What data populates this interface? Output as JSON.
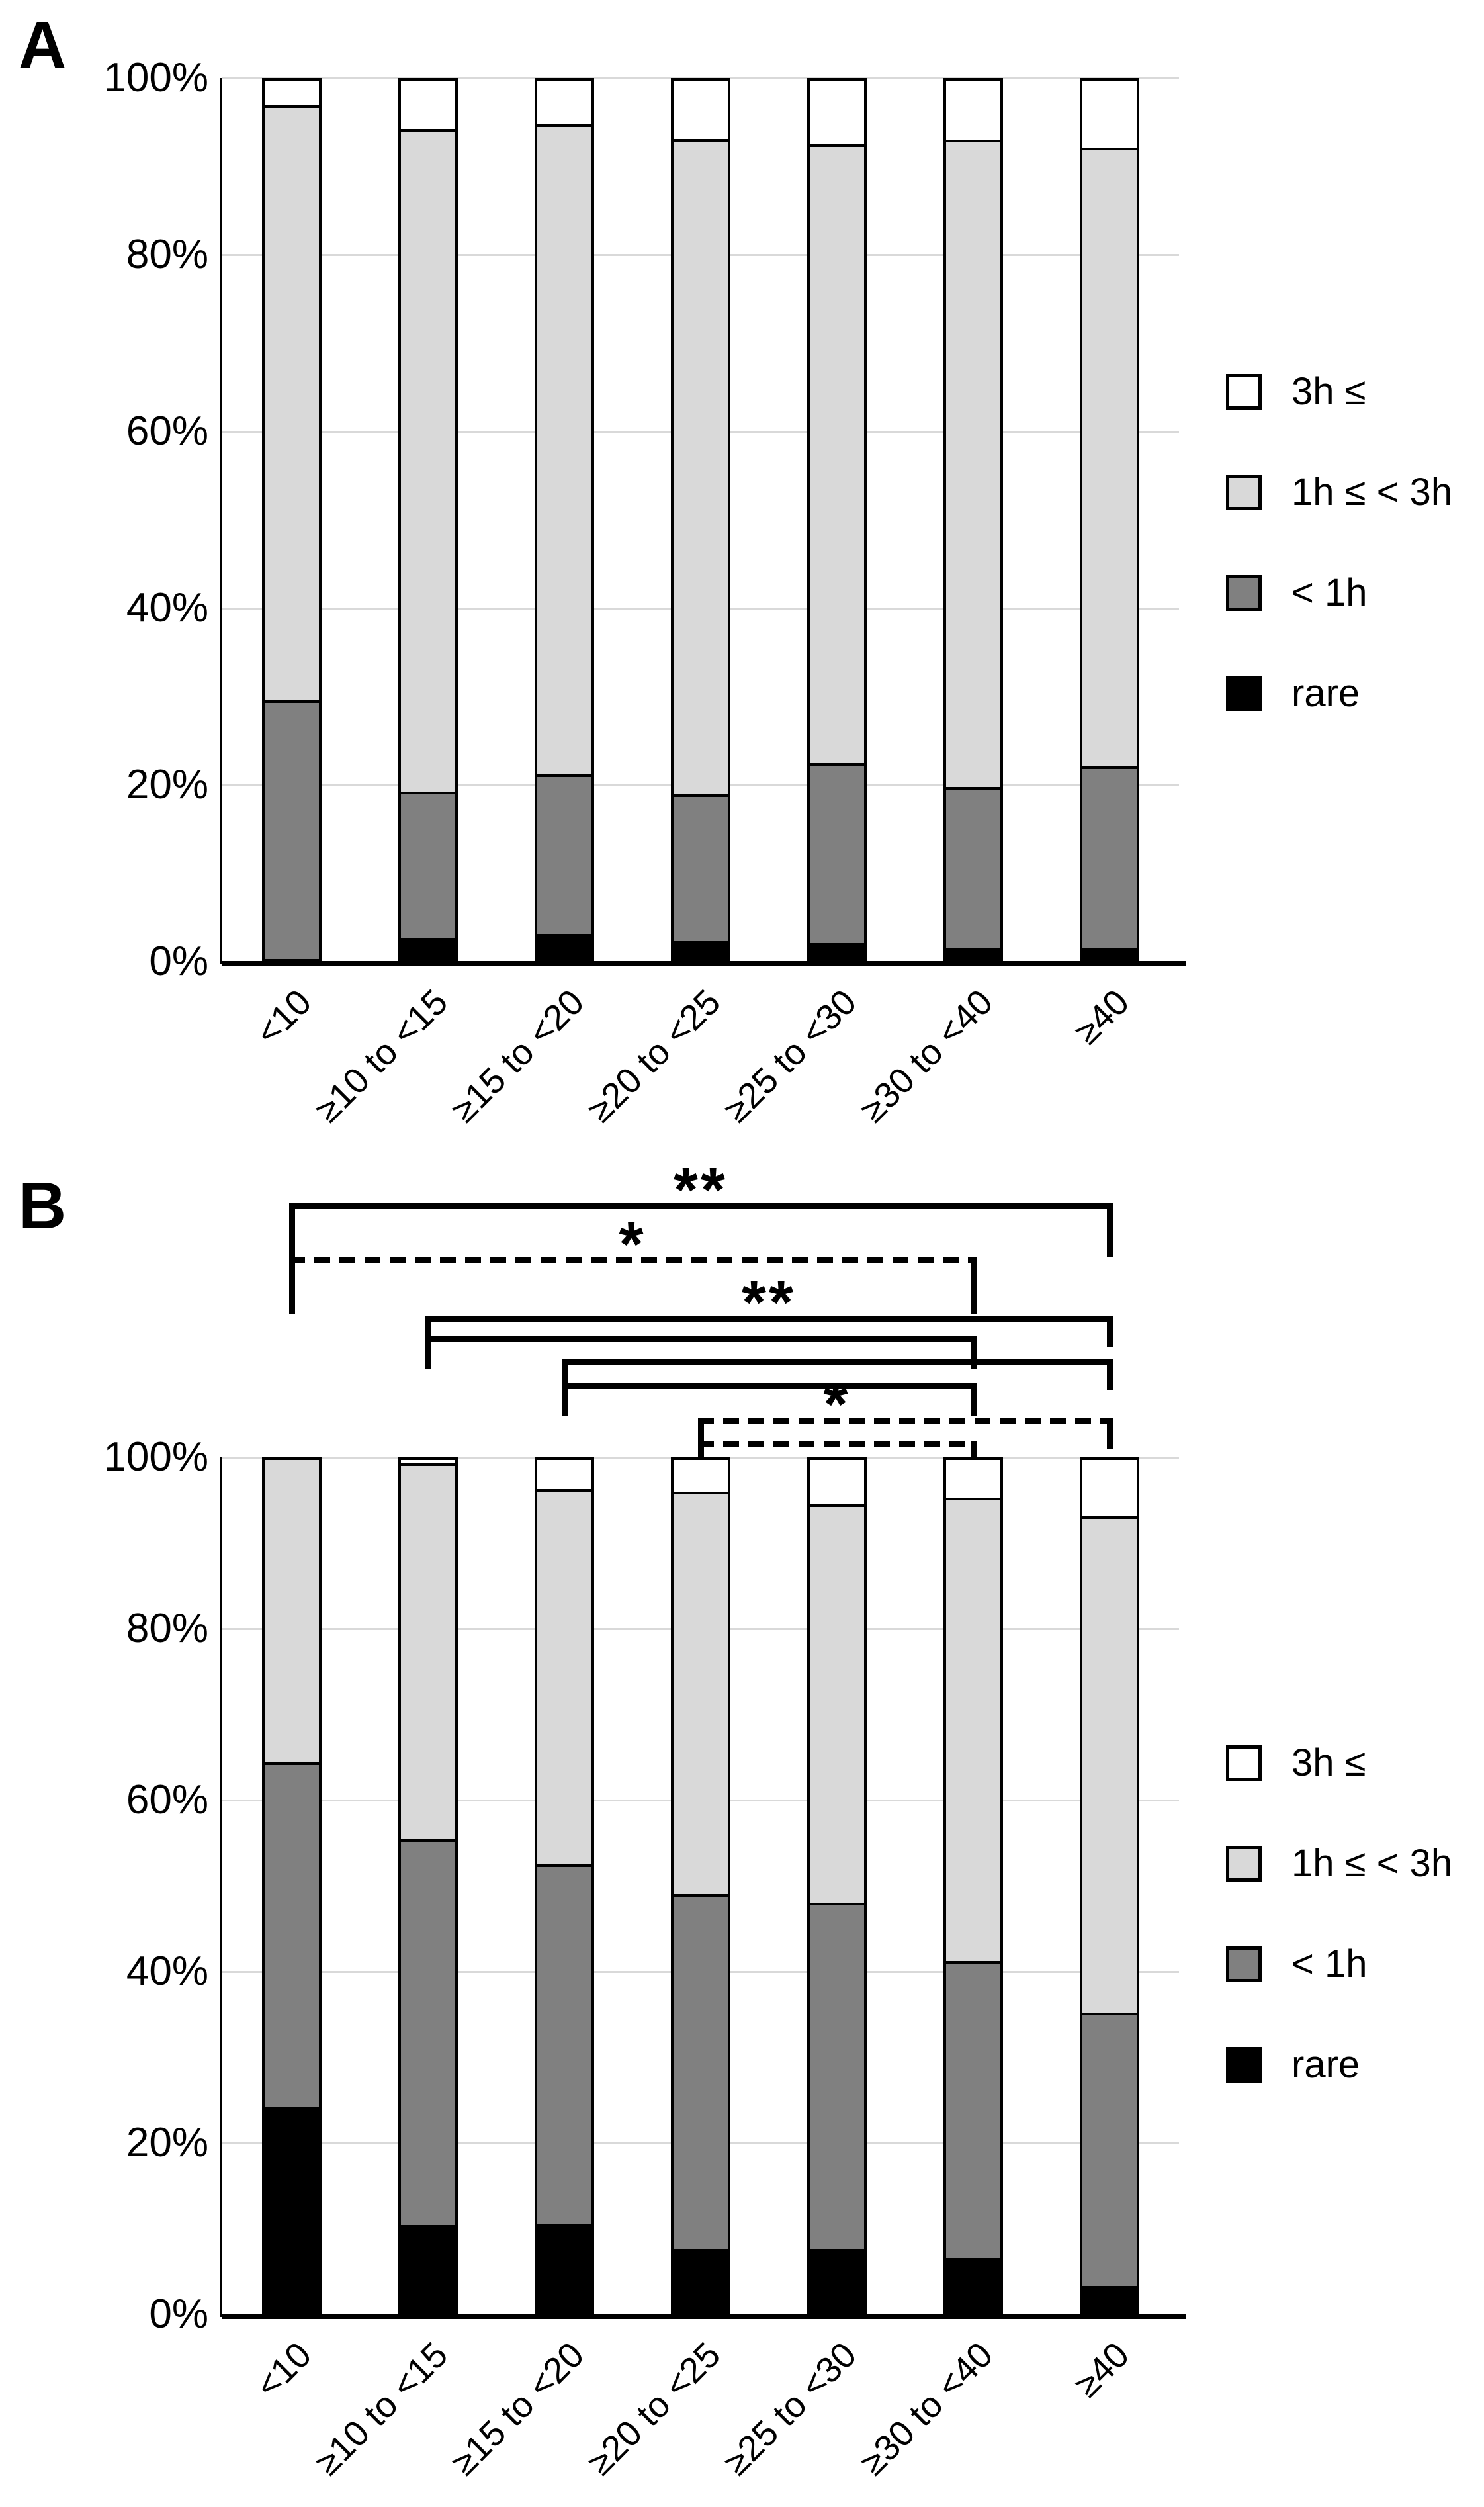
{
  "figure": {
    "background": "#ffffff",
    "panels": [
      {
        "label": "A"
      },
      {
        "label": "B"
      }
    ]
  },
  "legend": {
    "items": [
      {
        "label": "3h ≤",
        "color": "#ffffff"
      },
      {
        "label": "1h ≤ < 3h",
        "color": "#d9d9d9"
      },
      {
        "label": "< 1h",
        "color": "#808080"
      },
      {
        "label": "rare",
        "color": "#000000"
      }
    ]
  },
  "colors": {
    "rare": "#000000",
    "lt1h": "#808080",
    "h1to3": "#d9d9d9",
    "ge3h": "#ffffff",
    "gridline": "#d9d9d9",
    "axis": "#000000"
  },
  "chart_data": [
    {
      "type": "bar",
      "stacked": true,
      "panel_label": "A",
      "title": "",
      "xlabel": "",
      "ylabel": "",
      "ylim": [
        0,
        100
      ],
      "grid": true,
      "y_tick_labels": [
        "100%",
        "80%",
        "60%",
        "40%",
        "20%",
        "0%"
      ],
      "categories": [
        "<10",
        "≥10 to <15",
        "≥15 to <20",
        "≥20 to <25",
        "≥25 to <30",
        "≥30 to <40",
        "≥40"
      ],
      "series": [
        {
          "name": "rare",
          "color": "#000000",
          "values": [
            0,
            2.3,
            2.9,
            2.0,
            1.8,
            1.2,
            1.2
          ]
        },
        {
          "name": "< 1h",
          "color": "#808080",
          "values": [
            29.5,
            16.8,
            18.1,
            16.8,
            20.5,
            18.4,
            20.7
          ]
        },
        {
          "name": "1h ≤ < 3h",
          "color": "#d9d9d9",
          "values": [
            67.7,
            75.4,
            74.0,
            74.6,
            70.5,
            73.7,
            70.5
          ]
        },
        {
          "name": "3h ≤",
          "color": "#ffffff",
          "values": [
            2.8,
            5.5,
            5.0,
            6.6,
            7.2,
            6.7,
            7.6
          ]
        }
      ],
      "significance_brackets": []
    },
    {
      "type": "bar",
      "stacked": true,
      "panel_label": "B",
      "title": "",
      "xlabel": "",
      "ylabel": "",
      "ylim": [
        0,
        100
      ],
      "grid": true,
      "y_tick_labels": [
        "100%",
        "80%",
        "60%",
        "40%",
        "20%",
        "0%"
      ],
      "categories": [
        "<10",
        "≥10 to <15",
        "≥15 to <20",
        "≥20 to <25",
        "≥25 to <30",
        "≥30 to <40",
        "≥40"
      ],
      "series": [
        {
          "name": "rare",
          "color": "#000000",
          "values": [
            24.0,
            10.2,
            10.3,
            7.4,
            7.4,
            6.3,
            3.0
          ]
        },
        {
          "name": "< 1h",
          "color": "#808080",
          "values": [
            40.5,
            45.3,
            42.2,
            41.6,
            40.6,
            34.9,
            32.1
          ]
        },
        {
          "name": "1h ≤ < 3h",
          "color": "#d9d9d9",
          "values": [
            35.5,
            44.1,
            44.1,
            47.3,
            46.8,
            54.4,
            58.3
          ]
        },
        {
          "name": "3h ≤",
          "color": "#ffffff",
          "values": [
            0,
            0.4,
            3.4,
            3.7,
            5.2,
            4.4,
            6.6
          ]
        }
      ],
      "significance_brackets": [
        {
          "from": "<10",
          "to": "≥40",
          "style": "solid",
          "label": "**"
        },
        {
          "from": "<10",
          "to": "≥30 to <40",
          "style": "dashed",
          "label": "*"
        },
        {
          "from": "≥10 to <15",
          "to": "≥40",
          "style": "solid",
          "label": "**"
        },
        {
          "from": "≥10 to <15",
          "to": "≥30 to <40",
          "style": "solid",
          "label": ""
        },
        {
          "from": "≥15 to <20",
          "to": "≥40",
          "style": "solid",
          "label": ""
        },
        {
          "from": "≥15 to <20",
          "to": "≥30 to <40",
          "style": "solid",
          "label": ""
        },
        {
          "from": "≥20 to <25",
          "to": "≥40",
          "style": "dashed",
          "label": "*"
        },
        {
          "from": "≥20 to <25",
          "to": "≥30 to <40",
          "style": "dashed",
          "label": ""
        }
      ]
    }
  ]
}
